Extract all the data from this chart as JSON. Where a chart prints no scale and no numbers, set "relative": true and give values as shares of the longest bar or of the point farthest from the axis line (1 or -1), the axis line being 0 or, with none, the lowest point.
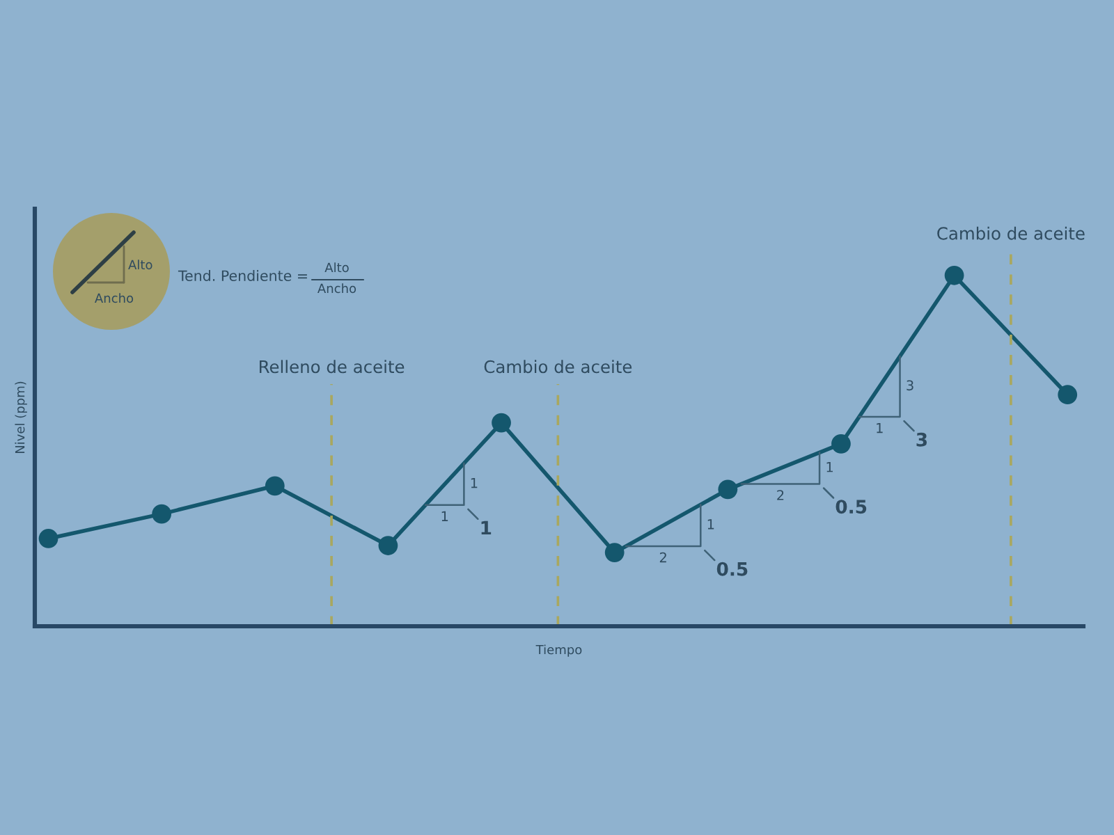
{
  "chart_data": {
    "type": "line",
    "xlabel": "Tiempo",
    "ylabel": "Nivel (ppm)",
    "relative": true,
    "marker": "circle",
    "line_style": "solid",
    "grid": false,
    "legend": false,
    "categories": [
      null,
      null,
      null,
      null,
      null,
      null,
      null,
      null,
      null,
      null
    ],
    "series": [
      {
        "color": "#14576d",
        "values": [
          0.25,
          0.32,
          0.4,
          0.23,
          0.58,
          0.21,
          0.39,
          0.52,
          1,
          0.66
        ]
      }
    ],
    "annotations": [
      "Alto",
      "Ancho",
      "Tend. Pendiente =",
      "Alto",
      "Ancho",
      "Relleno de aceite",
      "Cambio de aceite",
      "Cambio de aceite",
      "1",
      "1",
      "1",
      "1",
      "2",
      "0.5",
      "1",
      "2",
      "0.5",
      "3",
      "1",
      "3"
    ]
  }
}
